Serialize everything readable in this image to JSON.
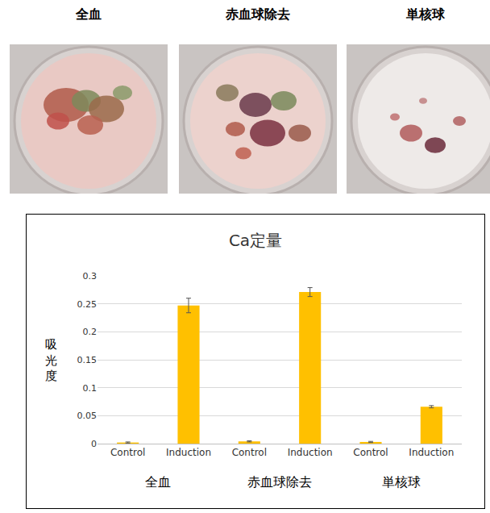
{
  "photos": {
    "labels": [
      "全血",
      "赤血球除去",
      "単核球"
    ]
  },
  "chart_data": {
    "type": "bar",
    "title": "Ca定量",
    "y_label": "吸光度",
    "groups": [
      "全血",
      "赤血球除去",
      "単核球"
    ],
    "categories": [
      "Control",
      "Induction",
      "Control",
      "Induction",
      "Control",
      "Induction"
    ],
    "values": [
      0.002,
      0.247,
      0.004,
      0.271,
      0.003,
      0.066
    ],
    "errors": [
      0.001,
      0.013,
      0.001,
      0.008,
      0.001,
      0.002
    ],
    "color": "#FFC000",
    "ylim": [
      0,
      0.3
    ],
    "yticks": [
      0,
      0.05,
      0.1,
      0.15,
      0.2,
      0.25,
      0.3
    ],
    "grid": true
  }
}
